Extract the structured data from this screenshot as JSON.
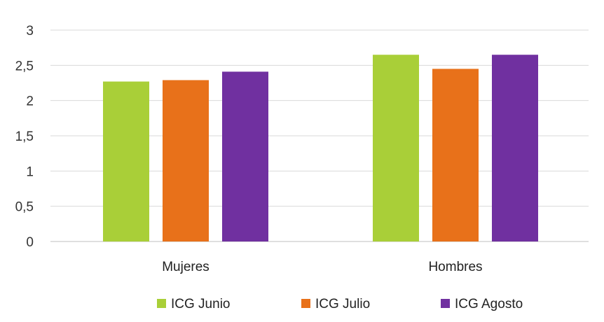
{
  "chart_data": {
    "type": "bar",
    "categories": [
      "Mujeres",
      "Hombres"
    ],
    "series": [
      {
        "name": "ICG Junio",
        "values": [
          2.27,
          2.65
        ],
        "color": "#A9CF38"
      },
      {
        "name": "ICG Julio",
        "values": [
          2.29,
          2.45
        ],
        "color": "#E8711A"
      },
      {
        "name": "ICG Agosto",
        "values": [
          2.41,
          2.65
        ],
        "color": "#7030A0"
      }
    ],
    "yticks": [
      "0",
      "0,5",
      "1",
      "1,5",
      "2",
      "2,5",
      "3"
    ],
    "ylim": [
      0,
      3
    ],
    "grid": true,
    "legend_position": "bottom"
  }
}
